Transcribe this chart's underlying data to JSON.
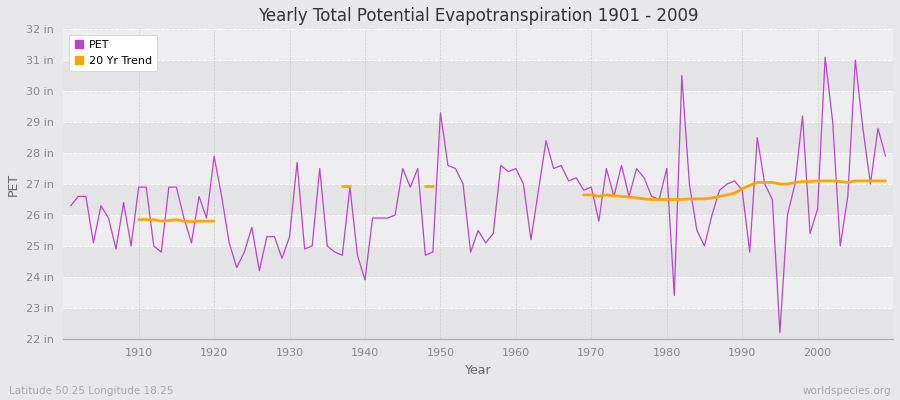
{
  "title": "Yearly Total Potential Evapotranspiration 1901 - 2009",
  "xlabel": "Year",
  "ylabel": "PET",
  "subtitle_left": "Latitude 50.25 Longitude 18.25",
  "subtitle_right": "worldspecies.org",
  "ylim": [
    22,
    32
  ],
  "ytick_labels": [
    "22 in",
    "23 in",
    "24 in",
    "25 in",
    "26 in",
    "27 in",
    "28 in",
    "29 in",
    "30 in",
    "31 in",
    "32 in"
  ],
  "ytick_values": [
    22,
    23,
    24,
    25,
    26,
    27,
    28,
    29,
    30,
    31,
    32
  ],
  "xlim": [
    1901,
    2009
  ],
  "xtick_values": [
    1910,
    1920,
    1930,
    1940,
    1950,
    1960,
    1970,
    1980,
    1990,
    2000
  ],
  "pet_color": "#BB44CC",
  "trend_color": "#FFA500",
  "background_color": "#E8E8EA",
  "plot_bg_color": "#EEEEF0",
  "grid_color": "#FFFFFF",
  "pet_data": {
    "1901": 26.3,
    "1902": 26.6,
    "1903": 26.6,
    "1904": 25.1,
    "1905": 26.3,
    "1906": 25.9,
    "1907": 24.9,
    "1908": 26.4,
    "1909": 25.0,
    "1910": 26.9,
    "1911": 26.9,
    "1912": 25.0,
    "1913": 24.8,
    "1914": 26.9,
    "1915": 26.9,
    "1916": 25.9,
    "1917": 25.1,
    "1918": 26.6,
    "1919": 25.9,
    "1920": 27.9,
    "1921": 26.6,
    "1922": 25.1,
    "1923": 24.3,
    "1924": 24.8,
    "1925": 25.6,
    "1926": 24.2,
    "1927": 25.3,
    "1928": 25.3,
    "1929": 24.6,
    "1930": 25.3,
    "1931": 27.7,
    "1932": 24.9,
    "1933": 25.0,
    "1934": 27.5,
    "1935": 25.0,
    "1936": 24.8,
    "1937": 24.7,
    "1938": 26.9,
    "1939": 24.7,
    "1940": 23.9,
    "1941": 25.9,
    "1942": 25.9,
    "1943": 25.9,
    "1944": 26.0,
    "1945": 27.5,
    "1946": 26.9,
    "1947": 27.5,
    "1948": 24.7,
    "1949": 24.8,
    "1950": 29.3,
    "1951": 27.6,
    "1952": 27.5,
    "1953": 27.0,
    "1954": 24.8,
    "1955": 25.5,
    "1956": 25.1,
    "1957": 25.4,
    "1958": 27.6,
    "1959": 27.4,
    "1960": 27.5,
    "1961": 27.0,
    "1962": 25.2,
    "1963": 26.8,
    "1964": 28.4,
    "1965": 27.5,
    "1966": 27.6,
    "1967": 27.1,
    "1968": 27.2,
    "1969": 26.8,
    "1970": 26.9,
    "1971": 25.8,
    "1972": 27.5,
    "1973": 26.6,
    "1974": 27.6,
    "1975": 26.6,
    "1976": 27.5,
    "1977": 27.2,
    "1978": 26.6,
    "1979": 26.5,
    "1980": 27.5,
    "1981": 23.4,
    "1982": 30.5,
    "1983": 27.0,
    "1984": 25.5,
    "1985": 25.0,
    "1986": 26.0,
    "1987": 26.8,
    "1988": 27.0,
    "1989": 27.1,
    "1990": 26.8,
    "1991": 24.8,
    "1992": 28.5,
    "1993": 27.0,
    "1994": 26.5,
    "1995": 22.2,
    "1996": 26.0,
    "1997": 27.0,
    "1998": 29.2,
    "1999": 25.4,
    "2000": 26.2,
    "2001": 31.1,
    "2002": 29.0,
    "2003": 25.0,
    "2004": 26.6,
    "2005": 31.0,
    "2006": 28.8,
    "2007": 27.0,
    "2008": 28.8,
    "2009": 27.9
  },
  "trend_segment1": {
    "years": [
      1910,
      1911,
      1912,
      1913,
      1914,
      1915,
      1916,
      1917,
      1918,
      1919,
      1920
    ],
    "values": [
      25.85,
      25.85,
      25.85,
      25.8,
      25.82,
      25.85,
      25.8,
      25.78,
      25.8,
      25.8,
      25.8
    ]
  },
  "trend_segment2": {
    "years": [
      1937,
      1938
    ],
    "values": [
      26.95,
      26.95
    ]
  },
  "trend_segment3": {
    "years": [
      1948,
      1949
    ],
    "values": [
      26.95,
      26.95
    ]
  },
  "trend_segment4": {
    "years": [
      1969,
      1970,
      1971,
      1972,
      1973,
      1974,
      1975,
      1976,
      1977,
      1978,
      1979,
      1980,
      1981,
      1982,
      1983,
      1984,
      1985,
      1986,
      1987,
      1988,
      1989,
      1990,
      1991,
      1992,
      1993,
      1994,
      1995,
      1996,
      1997,
      1998,
      1999,
      2000,
      2001,
      2002,
      2003,
      2004,
      2005,
      2006,
      2007,
      2008,
      2009
    ],
    "values": [
      26.65,
      26.65,
      26.6,
      26.65,
      26.62,
      26.6,
      26.58,
      26.55,
      26.52,
      26.5,
      26.5,
      26.5,
      26.5,
      26.5,
      26.52,
      26.52,
      26.52,
      26.55,
      26.6,
      26.65,
      26.7,
      26.85,
      26.95,
      27.05,
      27.05,
      27.05,
      27.0,
      27.0,
      27.05,
      27.08,
      27.08,
      27.1,
      27.1,
      27.1,
      27.08,
      27.05,
      27.1,
      27.1,
      27.1,
      27.1,
      27.1
    ]
  }
}
